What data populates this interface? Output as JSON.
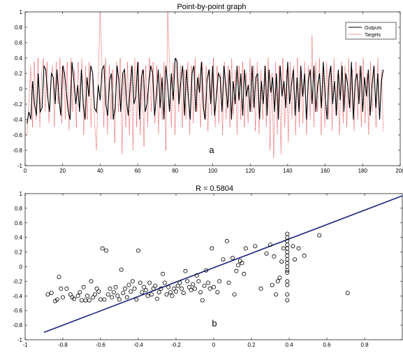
{
  "chart_data": [
    {
      "type": "line",
      "title": "Point-by-point graph",
      "panel_label": "a",
      "xlim": [
        0,
        200
      ],
      "ylim": [
        -1,
        1
      ],
      "xticks": [
        0,
        20,
        40,
        60,
        80,
        100,
        120,
        140,
        160,
        180,
        200
      ],
      "yticks": [
        -1,
        -0.8,
        -0.6,
        -0.4,
        -0.2,
        0,
        0.2,
        0.4,
        0.6,
        0.8,
        1
      ],
      "legend": {
        "location": "top-right",
        "entries": [
          "Outputs",
          "Targets"
        ]
      },
      "colors": {
        "outputs": "#000000",
        "targets": "#e03030"
      },
      "series": [
        {
          "name": "Outputs",
          "style": "solid",
          "values": [
            -0.45,
            -0.3,
            -0.4,
            0.1,
            -0.2,
            -0.35,
            0.2,
            -0.3,
            -0.25,
            0.3,
            0.25,
            -0.1,
            -0.3,
            0.2,
            0.15,
            -0.2,
            0.25,
            -0.1,
            -0.35,
            0.3,
            0.2,
            -0.05,
            -0.3,
            -0.4,
            0.35,
            0.1,
            -0.2,
            0.05,
            -0.3,
            0.25,
            -0.2,
            -0.4,
            0.15,
            -0.1,
            0.3,
            0.2,
            -0.25,
            -0.3,
            0.05,
            -0.15,
            0.25,
            0.3,
            -0.2,
            -0.35,
            0.1,
            0.2,
            -0.4,
            -0.25,
            0.3,
            0.1,
            -0.3,
            0.2,
            0.25,
            -0.15,
            -0.35,
            0.05,
            0.3,
            -0.2,
            -0.1,
            0.35,
            -0.4,
            0.15,
            0.25,
            -0.3,
            -0.2,
            0.1,
            0.3,
            0.2,
            -0.35,
            -0.1,
            0.25,
            -0.25,
            0.15,
            -0.4,
            0.3,
            0.05,
            -0.3,
            0.2,
            -0.15,
            0.4,
            0.35,
            -0.2,
            0.1,
            0.3,
            -0.35,
            0.25,
            -0.1,
            -0.4,
            0.2,
            0.3,
            -0.3,
            0.15,
            -0.05,
            0.35,
            -0.25,
            -0.4,
            0.1,
            0.25,
            -0.2,
            0.3,
            -0.35,
            -0.1,
            0.2,
            0.15,
            -0.3,
            0.3,
            0.05,
            -0.25,
            0.25,
            -0.4,
            0.1,
            -0.2,
            0.3,
            -0.15,
            0.2,
            -0.35,
            0.25,
            -0.1,
            0.05,
            -0.3,
            0.3,
            -0.25,
            0.15,
            0.2,
            -0.4,
            0.1,
            -0.2,
            0.3,
            -0.35,
            0.25,
            -0.05,
            0.15,
            -0.3,
            0.2,
            -0.4,
            0.3,
            -0.1,
            0.1,
            -0.25,
            0.35,
            -0.2,
            0.05,
            0.25,
            -0.35,
            0.15,
            -0.3,
            0.3,
            -0.1,
            0.2,
            -0.4,
            0.1,
            0.25,
            -0.2,
            0.3,
            -0.3,
            0.05,
            0.2,
            -0.25,
            0.35,
            -0.1,
            -0.4,
            0.15,
            0.3,
            -0.2,
            0.1,
            -0.35,
            0.25,
            -0.15,
            0.3,
            -0.3,
            0.2,
            0.05,
            -0.25,
            0.35,
            -0.4,
            0.1,
            0.2,
            -0.2,
            0.3,
            -0.3,
            0.15,
            -0.1,
            0.25,
            -0.35,
            0.05,
            0.3,
            -0.25,
            0.2,
            -0.4,
            0.1,
            0.25
          ]
        },
        {
          "name": "Targets",
          "style": "dotted",
          "values": [
            -0.6,
            -0.2,
            0.3,
            -0.5,
            0.35,
            -0.4,
            0.4,
            -0.5,
            0.2,
            0.4,
            -0.3,
            0.35,
            -0.45,
            0.1,
            0.3,
            -0.5,
            0.35,
            -0.2,
            0.4,
            -0.45,
            0.3,
            -0.4,
            0.35,
            -0.55,
            0.4,
            -0.3,
            0.25,
            -0.5,
            0.35,
            -0.2,
            0.4,
            -0.6,
            0.3,
            -0.4,
            0.35,
            -0.5,
            0.2,
            -0.45,
            -0.8,
            0.1,
            1.0,
            0.35,
            -0.5,
            0.4,
            -0.6,
            0.3,
            -0.4,
            0.25,
            -0.7,
            0.35,
            -0.3,
            0.4,
            -0.85,
            0.2,
            -0.5,
            0.35,
            -0.6,
            0.3,
            -0.8,
            0.4,
            -0.5,
            0.35,
            -0.6,
            0.25,
            -0.75,
            0.3,
            -0.5,
            0.4,
            -0.3,
            0.35,
            -0.45,
            0.3,
            -0.6,
            0.2,
            -0.4,
            0.35,
            -0.8,
            1.0,
            0.3,
            -0.5,
            0.35,
            -0.6,
            0.4,
            -0.3,
            0.3,
            -0.5,
            0.25,
            -0.4,
            0.35,
            -0.6,
            0.3,
            -0.45,
            0.4,
            -0.3,
            0.2,
            -0.5,
            0.35,
            -0.4,
            0.3,
            -0.55,
            0.25,
            -0.35,
            0.4,
            -0.5,
            0.3,
            -0.45,
            0.2,
            -0.6,
            0.35,
            -0.4,
            0.3,
            -0.5,
            0.4,
            -0.35,
            0.25,
            -0.6,
            0.3,
            -0.4,
            0.35,
            -0.5,
            0.2,
            -0.45,
            0.4,
            -0.3,
            0.3,
            -0.55,
            0.35,
            -0.6,
            0.25,
            -0.4,
            0.3,
            -0.5,
            0.4,
            -0.8,
            0.2,
            -0.9,
            0.35,
            -0.6,
            0.3,
            -0.85,
            0.4,
            -0.5,
            0.25,
            -0.7,
            0.35,
            -0.4,
            0.3,
            -0.6,
            0.4,
            -0.5,
            0.2,
            -0.45,
            0.35,
            -0.6,
            0.3,
            -0.4,
            0.7,
            -0.5,
            0.35,
            -0.3,
            0.4,
            -0.6,
            0.25,
            -0.5,
            0.35,
            -0.4,
            0.3,
            -0.55,
            0.4,
            -0.35,
            0.2,
            -0.6,
            0.35,
            -0.45,
            0.3,
            -0.5,
            0.4,
            -0.3,
            0.25,
            -0.55,
            0.35,
            -0.4,
            0.3,
            -0.5,
            0.4,
            -0.45,
            0.2,
            -0.6,
            0.35,
            -0.3,
            0.3,
            -0.5,
            0.4,
            -0.4,
            0.25,
            -0.55
          ]
        }
      ]
    },
    {
      "type": "scatter",
      "title": "R = 0.5804",
      "panel_label": "b",
      "xlim": [
        -1,
        1
      ],
      "ylim": [
        -1,
        1
      ],
      "xticks": [
        -1,
        -0.8,
        -0.6,
        -0.4,
        -0.2,
        0,
        0.2,
        0.4,
        0.6,
        0.8
      ],
      "yticks": [
        -1,
        -0.8,
        -0.6,
        -0.4,
        -0.2,
        0,
        0.2,
        0.4,
        0.6,
        0.8,
        1
      ],
      "colors": {
        "points": "#000000",
        "fit_line": "#1a237e"
      },
      "fit_line": {
        "x": [
          -0.9,
          1.0
        ],
        "y": [
          -0.9,
          0.97
        ]
      },
      "points": [
        [
          -0.88,
          -0.38
        ],
        [
          -0.86,
          -0.36
        ],
        [
          -0.84,
          -0.47
        ],
        [
          -0.83,
          -0.45
        ],
        [
          -0.82,
          -0.14
        ],
        [
          -0.81,
          -0.3
        ],
        [
          -0.8,
          -0.42
        ],
        [
          -0.78,
          -0.3
        ],
        [
          -0.76,
          -0.38
        ],
        [
          -0.75,
          -0.42
        ],
        [
          -0.74,
          -0.44
        ],
        [
          -0.72,
          -0.4
        ],
        [
          -0.71,
          -0.35
        ],
        [
          -0.7,
          -0.46
        ],
        [
          -0.69,
          -0.28
        ],
        [
          -0.68,
          -0.46
        ],
        [
          -0.67,
          -0.4
        ],
        [
          -0.66,
          -0.46
        ],
        [
          -0.65,
          -0.2
        ],
        [
          -0.64,
          -0.42
        ],
        [
          -0.63,
          -0.38
        ],
        [
          -0.62,
          -0.3
        ],
        [
          -0.61,
          -0.34
        ],
        [
          -0.6,
          -0.45
        ],
        [
          -0.59,
          0.25
        ],
        [
          -0.58,
          -0.45
        ],
        [
          -0.57,
          0.22
        ],
        [
          -0.56,
          -0.38
        ],
        [
          -0.55,
          -0.3
        ],
        [
          -0.54,
          -0.42
        ],
        [
          -0.53,
          -0.35
        ],
        [
          -0.52,
          -0.28
        ],
        [
          -0.51,
          -0.4
        ],
        [
          -0.5,
          -0.45
        ],
        [
          -0.49,
          -0.04
        ],
        [
          -0.48,
          -0.36
        ],
        [
          -0.47,
          -0.3
        ],
        [
          -0.46,
          -0.42
        ],
        [
          -0.45,
          -0.25
        ],
        [
          -0.44,
          -0.34
        ],
        [
          -0.43,
          -0.2
        ],
        [
          -0.42,
          -0.3
        ],
        [
          -0.41,
          -0.45
        ],
        [
          -0.4,
          0.22
        ],
        [
          -0.39,
          -0.22
        ],
        [
          -0.38,
          -0.35
        ],
        [
          -0.37,
          -0.28
        ],
        [
          -0.36,
          -0.32
        ],
        [
          -0.35,
          -0.4
        ],
        [
          -0.34,
          -0.22
        ],
        [
          -0.33,
          -0.38
        ],
        [
          -0.32,
          -0.3
        ],
        [
          -0.31,
          -0.26
        ],
        [
          -0.3,
          -0.44
        ],
        [
          -0.29,
          -0.35
        ],
        [
          -0.28,
          -0.3
        ],
        [
          -0.27,
          -0.1
        ],
        [
          -0.26,
          -0.22
        ],
        [
          -0.25,
          -0.38
        ],
        [
          -0.24,
          -0.28
        ],
        [
          -0.23,
          -0.35
        ],
        [
          -0.22,
          -0.4
        ],
        [
          -0.21,
          -0.3
        ],
        [
          -0.2,
          -0.34
        ],
        [
          -0.19,
          -0.26
        ],
        [
          -0.18,
          -0.22
        ],
        [
          -0.17,
          -0.3
        ],
        [
          -0.16,
          -0.36
        ],
        [
          -0.15,
          -0.06
        ],
        [
          -0.14,
          -0.2
        ],
        [
          -0.13,
          -0.28
        ],
        [
          -0.12,
          -0.32
        ],
        [
          -0.11,
          -0.24
        ],
        [
          -0.1,
          -0.3
        ],
        [
          -0.09,
          -0.12
        ],
        [
          -0.08,
          -0.2
        ],
        [
          -0.07,
          -0.35
        ],
        [
          -0.06,
          -0.46
        ],
        [
          -0.05,
          -0.26
        ],
        [
          -0.04,
          -0.05
        ],
        [
          -0.03,
          -0.22
        ],
        [
          -0.02,
          -0.3
        ],
        [
          -0.01,
          0.25
        ],
        [
          0.0,
          -0.28
        ],
        [
          0.02,
          -0.35
        ],
        [
          0.03,
          -0.2
        ],
        [
          0.05,
          0.1
        ],
        [
          0.07,
          0.35
        ],
        [
          0.08,
          -0.22
        ],
        [
          0.1,
          0.12
        ],
        [
          0.11,
          -0.38
        ],
        [
          0.12,
          -0.06
        ],
        [
          0.13,
          0.02
        ],
        [
          0.14,
          0.08
        ],
        [
          0.15,
          0.05
        ],
        [
          0.16,
          -0.1
        ],
        [
          0.17,
          0.25
        ],
        [
          0.22,
          0.28
        ],
        [
          0.25,
          -0.3
        ],
        [
          0.28,
          0.18
        ],
        [
          0.3,
          0.3
        ],
        [
          0.31,
          -0.25
        ],
        [
          0.32,
          0.14
        ],
        [
          0.33,
          -0.38
        ],
        [
          0.34,
          -0.2
        ],
        [
          0.35,
          -0.15
        ],
        [
          0.36,
          0.07
        ],
        [
          0.37,
          0.25
        ],
        [
          0.39,
          0.45
        ],
        [
          0.39,
          0.4
        ],
        [
          0.39,
          0.35
        ],
        [
          0.39,
          0.3
        ],
        [
          0.39,
          0.25
        ],
        [
          0.39,
          0.2
        ],
        [
          0.39,
          0.15
        ],
        [
          0.39,
          0.1
        ],
        [
          0.39,
          0.05
        ],
        [
          0.39,
          0.0
        ],
        [
          0.39,
          -0.05
        ],
        [
          0.39,
          -0.08
        ],
        [
          0.39,
          -0.2
        ],
        [
          0.39,
          -0.25
        ],
        [
          0.39,
          -0.38
        ],
        [
          0.39,
          -0.46
        ],
        [
          0.42,
          0.28
        ],
        [
          0.43,
          0.1
        ],
        [
          0.45,
          0.25
        ],
        [
          0.48,
          0.15
        ],
        [
          0.56,
          0.43
        ],
        [
          0.71,
          -0.36
        ]
      ]
    }
  ]
}
